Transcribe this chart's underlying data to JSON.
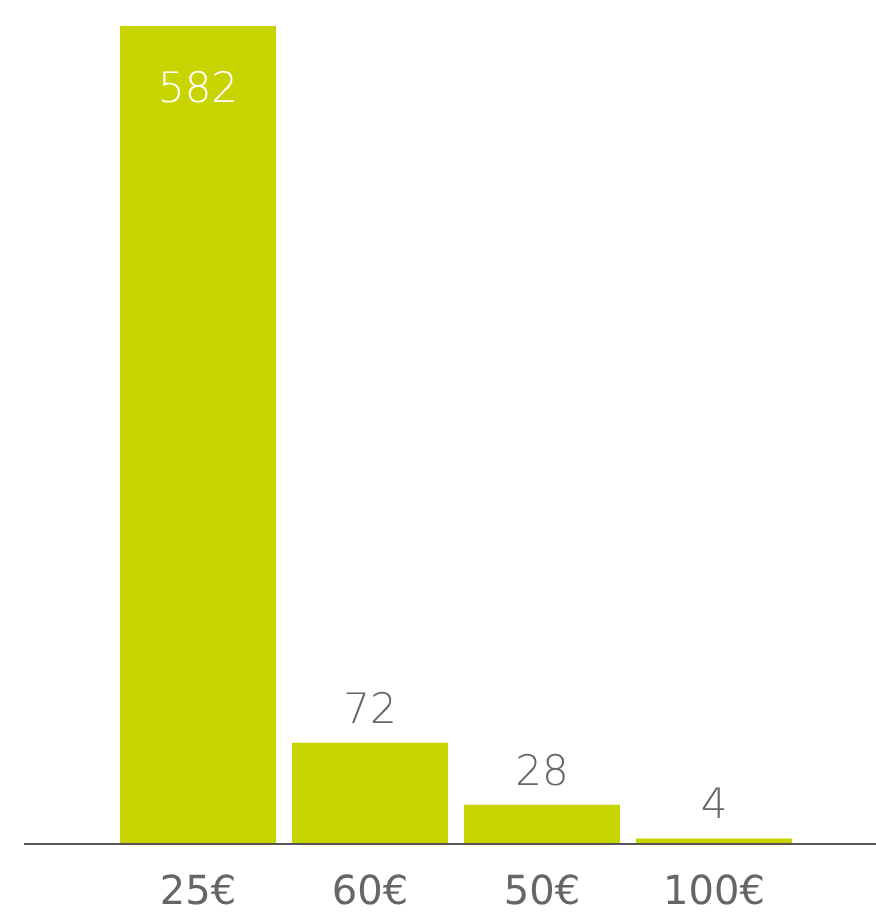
{
  "chart_data": {
    "type": "bar",
    "categories": [
      "25€",
      "60€",
      "50€",
      "100€"
    ],
    "values": [
      582,
      72,
      28,
      4
    ],
    "color": "#c8d400",
    "data_labels": true,
    "grid": false,
    "legend": false
  }
}
